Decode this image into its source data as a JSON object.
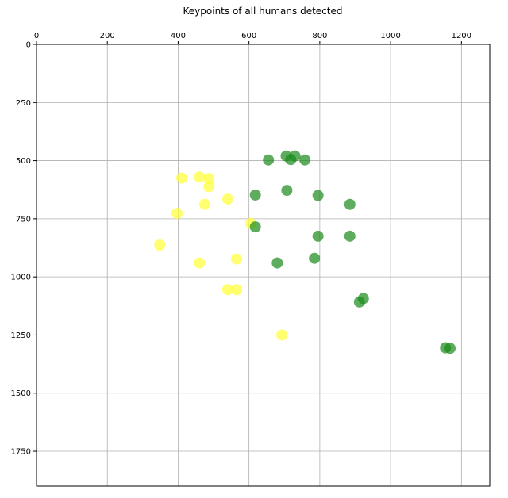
{
  "chart_data": {
    "type": "scatter",
    "title": "Keypoints of all humans detected",
    "xlabel": "",
    "ylabel": "",
    "xlim": [
      0,
      1280
    ],
    "ylim": [
      1900,
      0
    ],
    "x_axis_position": "top",
    "y_inverted": true,
    "grid": true,
    "legend": "none",
    "x_ticks": [
      0,
      200,
      400,
      600,
      800,
      1000,
      1200
    ],
    "y_ticks": [
      0,
      250,
      500,
      750,
      1000,
      1250,
      1500,
      1750
    ],
    "series": [
      {
        "color": "#ffff33",
        "points": [
          [
            410,
            575
          ],
          [
            460,
            570
          ],
          [
            487,
            577
          ],
          [
            487,
            612
          ],
          [
            397,
            727
          ],
          [
            475,
            688
          ],
          [
            540,
            665
          ],
          [
            605,
            770
          ],
          [
            348,
            863
          ],
          [
            460,
            940
          ],
          [
            565,
            923
          ],
          [
            540,
            1055
          ],
          [
            565,
            1055
          ],
          [
            693,
            1250
          ]
        ]
      },
      {
        "color": "#1a8a1a",
        "points": [
          [
            655,
            497
          ],
          [
            705,
            480
          ],
          [
            718,
            495
          ],
          [
            730,
            480
          ],
          [
            758,
            497
          ],
          [
            618,
            648
          ],
          [
            707,
            628
          ],
          [
            795,
            650
          ],
          [
            885,
            688
          ],
          [
            618,
            785
          ],
          [
            795,
            825
          ],
          [
            885,
            825
          ],
          [
            680,
            940
          ],
          [
            785,
            920
          ],
          [
            912,
            1108
          ],
          [
            923,
            1093
          ],
          [
            1155,
            1305
          ],
          [
            1168,
            1307
          ]
        ]
      }
    ]
  }
}
